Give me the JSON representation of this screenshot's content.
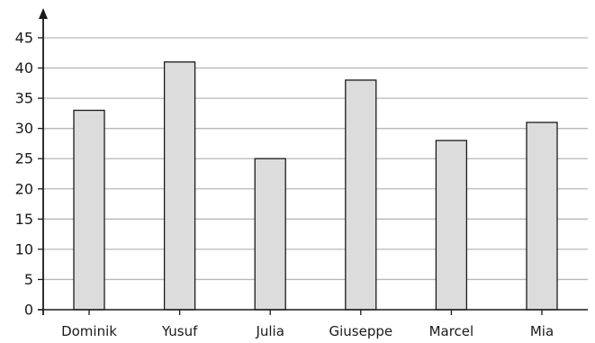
{
  "chart_data": {
    "type": "bar",
    "categories": [
      "Dominik",
      "Yusuf",
      "Julia",
      "Giuseppe",
      "Marcel",
      "Mia"
    ],
    "values": [
      33,
      41,
      25,
      38,
      28,
      31
    ],
    "title": "",
    "xlabel": "",
    "ylabel": "",
    "ylim": [
      0,
      45
    ],
    "yticks": [
      0,
      5,
      10,
      15,
      20,
      25,
      30,
      35,
      40,
      45
    ],
    "grid": true,
    "legend": "none",
    "colors": {
      "bar_fill": "#dcdcdc",
      "bar_stroke": "#1a1a1a",
      "grid": "#b8b8b8",
      "axis": "#1a1a1a"
    }
  }
}
